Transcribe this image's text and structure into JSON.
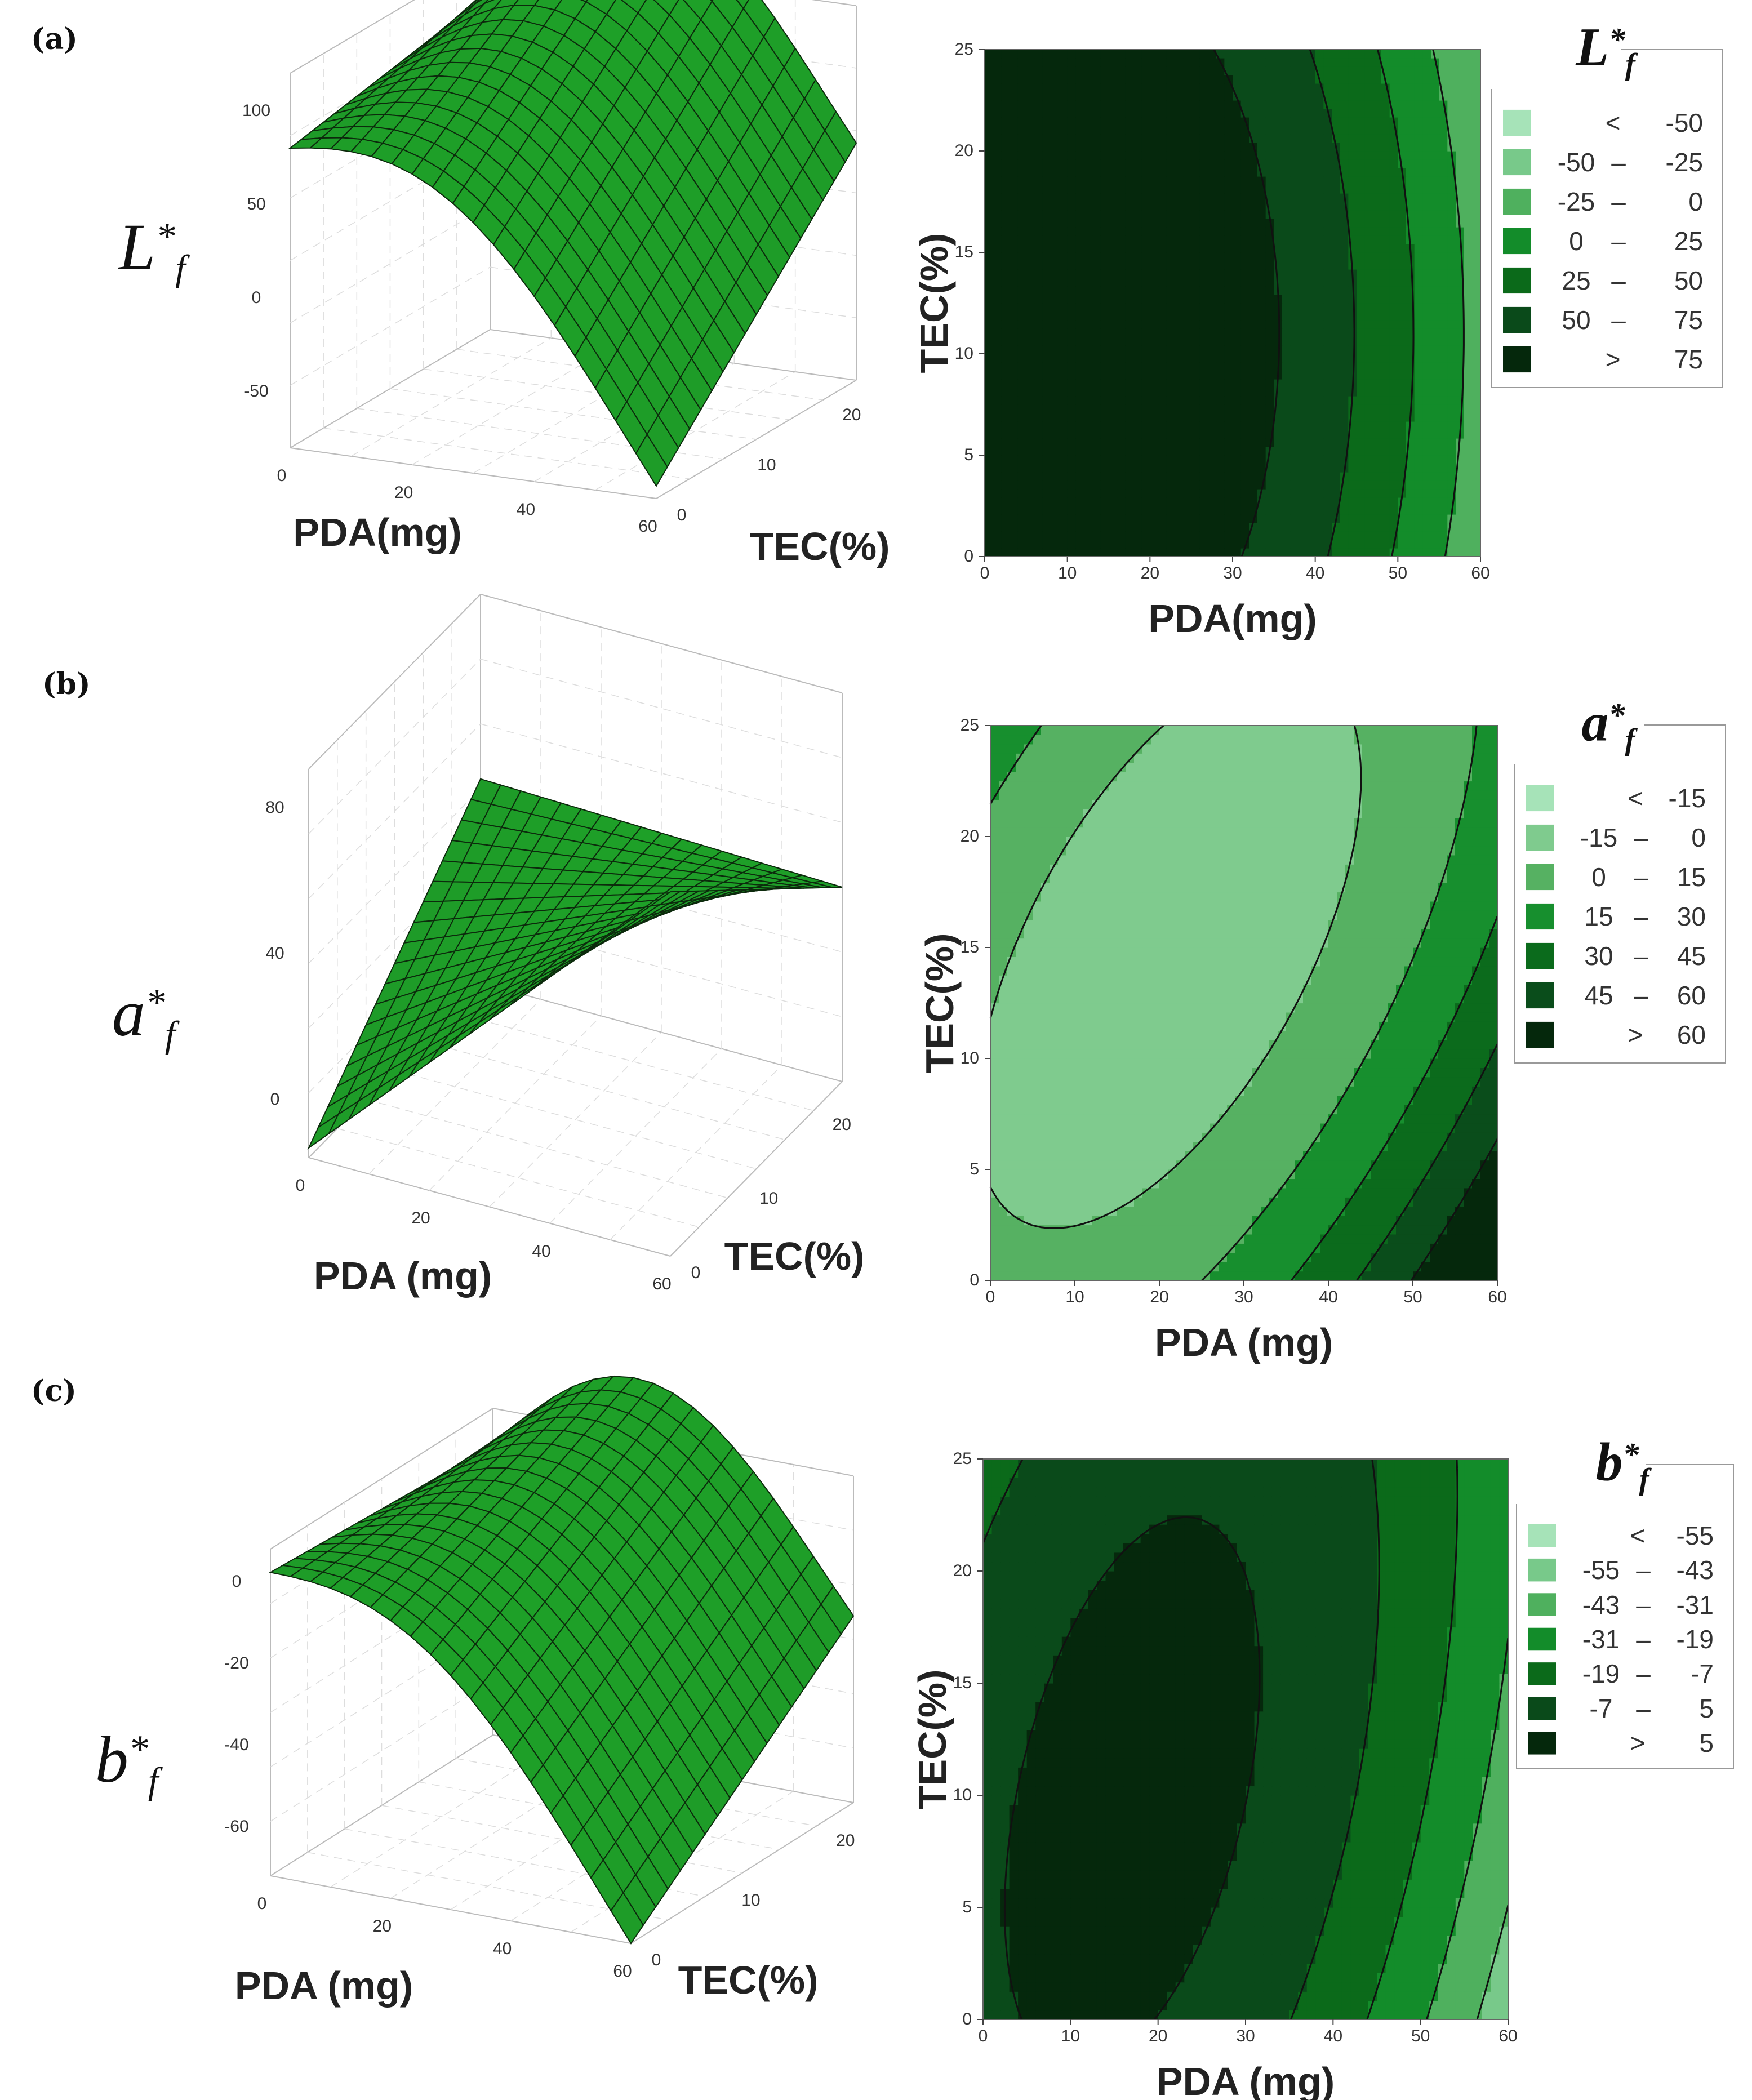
{
  "panels": [
    {
      "label": "(a)"
    },
    {
      "label": "(b)"
    },
    {
      "label": "(c)"
    }
  ],
  "chart_data": [
    {
      "type": "surface",
      "panel": "(a)",
      "title": "L*f",
      "zlabel_base": "L",
      "zlabel_sub": "f",
      "xlabel": "PDA(mg)",
      "ylabel": "TEC(%)",
      "x_ticks": [
        "0",
        "20",
        "40",
        "60"
      ],
      "y_ticks": [
        "0",
        "10",
        "20"
      ],
      "z_ticks": [
        "100",
        "50",
        "0",
        "-50"
      ],
      "xlim": [
        0,
        60
      ],
      "ylim": [
        0,
        25
      ],
      "zlim": [
        -50,
        100
      ],
      "shape": "dome",
      "corners": {
        "x0_y0": 70,
        "x0_y25": 85,
        "x60_y0": -45,
        "x60_y25": 45
      },
      "color": "#2f8f2f"
    },
    {
      "type": "contour",
      "panel": "(a)",
      "title": "L*f",
      "xlabel": "PDA(mg)",
      "ylabel": "TEC(%)",
      "x_ticks": [
        "0",
        "10",
        "20",
        "30",
        "40",
        "50",
        "60"
      ],
      "y_ticks": [
        "0",
        "5",
        "10",
        "15",
        "20",
        "25"
      ],
      "xlim": [
        0,
        60
      ],
      "ylim": [
        0,
        25
      ],
      "levels": [
        -50,
        -25,
        0,
        25,
        50,
        75
      ],
      "legend_title_base": "L",
      "legend_title_sub": "f",
      "legend_rows": [
        {
          "op": "<",
          "a": "",
          "b": "-50",
          "color": "#a6e3b8"
        },
        {
          "op": "",
          "a": "-50",
          "b": "-25",
          "color": "#78c98a"
        },
        {
          "op": "",
          "a": "-25",
          "b": "0",
          "color": "#4fb05e"
        },
        {
          "op": "",
          "a": "0",
          "b": "25",
          "color": "#138c2a"
        },
        {
          "op": "",
          "a": "25",
          "b": "50",
          "color": "#0b6a1a"
        },
        {
          "op": "",
          "a": "50",
          "b": "75",
          "color": "#0a4a1a"
        },
        {
          "op": ">",
          "a": "",
          "b": "75",
          "color": "#05280c"
        }
      ],
      "model": {
        "c": 105,
        "ax": 0,
        "px": -0.0456,
        "xc": 10,
        "ay": 0,
        "py": -0.08,
        "yc": 11
      }
    },
    {
      "type": "surface",
      "panel": "(b)",
      "title": "a*f",
      "zlabel_base": "a",
      "zlabel_sub": "f",
      "xlabel": "PDA (mg)",
      "ylabel": "TEC(%)",
      "x_ticks": [
        "0",
        "20",
        "40",
        "60"
      ],
      "y_ticks": [
        "0",
        "10",
        "20"
      ],
      "z_ticks": [
        "80",
        "40",
        "0"
      ],
      "xlim": [
        0,
        60
      ],
      "ylim": [
        0,
        25
      ],
      "zlim": [
        0,
        80
      ],
      "shape": "saddle",
      "corners": {
        "x0_y0": 2,
        "x0_y25": 42,
        "x60_y0": 75,
        "x60_y25": 40
      },
      "color": "#2f8f2f"
    },
    {
      "type": "contour",
      "panel": "(b)",
      "title": "a*f",
      "xlabel": "PDA (mg)",
      "ylabel": "TEC(%)",
      "x_ticks": [
        "0",
        "10",
        "20",
        "30",
        "40",
        "50",
        "60"
      ],
      "y_ticks": [
        "0",
        "5",
        "10",
        "15",
        "20",
        "25"
      ],
      "xlim": [
        0,
        60
      ],
      "ylim": [
        0,
        25
      ],
      "levels": [
        -15,
        0,
        15,
        30,
        45,
        60
      ],
      "legend_title_base": "a",
      "legend_title_sub": "f",
      "legend_rows": [
        {
          "op": "<",
          "a": "",
          "b": "-15",
          "color": "#a6e3b8"
        },
        {
          "op": "",
          "a": "-15",
          "b": "0",
          "color": "#7fcb8e"
        },
        {
          "op": "",
          "a": "0",
          "b": "15",
          "color": "#56b162"
        },
        {
          "op": "",
          "a": "15",
          "b": "30",
          "color": "#178f2e"
        },
        {
          "op": "",
          "a": "30",
          "b": "45",
          "color": "#0b6b1c"
        },
        {
          "op": "",
          "a": "45",
          "b": "60",
          "color": "#0a4d1b"
        },
        {
          "op": ">",
          "a": "",
          "b": "60",
          "color": "#05280c"
        }
      ],
      "model": {
        "c": -2,
        "ax": 0,
        "px": 0.028,
        "xc": 5,
        "ay": 0,
        "py": 0.09,
        "yc": 8,
        "bx": 0,
        "xy": -0.06
      }
    },
    {
      "type": "surface",
      "panel": "(c)",
      "title": "b*f",
      "zlabel_base": "b",
      "zlabel_sub": "f",
      "xlabel": "PDA (mg)",
      "ylabel": "TEC(%)",
      "x_ticks": [
        "0",
        "20",
        "40",
        "60"
      ],
      "y_ticks": [
        "0",
        "10",
        "20"
      ],
      "z_ticks": [
        "0",
        "-20",
        "-40",
        "-60"
      ],
      "xlim": [
        0,
        60
      ],
      "ylim": [
        0,
        25
      ],
      "zlim": [
        -60,
        10
      ],
      "shape": "dome",
      "corners": {
        "x0_y0": 5,
        "x0_y25": 2,
        "x60_y0": -60,
        "x60_y25": -20
      },
      "color": "#2f8f2f"
    },
    {
      "type": "contour",
      "panel": "(c)",
      "title": "b*f",
      "xlabel": "PDA (mg)",
      "ylabel": "TEC(%)",
      "x_ticks": [
        "0",
        "10",
        "20",
        "30",
        "40",
        "50",
        "60"
      ],
      "y_ticks": [
        "0",
        "5",
        "10",
        "15",
        "20",
        "25"
      ],
      "xlim": [
        0,
        60
      ],
      "ylim": [
        0,
        25
      ],
      "levels": [
        -55,
        -43,
        -31,
        -19,
        -7,
        5
      ],
      "legend_title_base": "b",
      "legend_title_sub": "f",
      "legend_rows": [
        {
          "op": "<",
          "a": "",
          "b": "-55",
          "color": "#a6e3b8"
        },
        {
          "op": "",
          "a": "-55",
          "b": "-43",
          "color": "#78c98a"
        },
        {
          "op": "",
          "a": "-43",
          "b": "-31",
          "color": "#4fb05e"
        },
        {
          "op": "",
          "a": "-31",
          "b": "-19",
          "color": "#138c2a"
        },
        {
          "op": "",
          "a": "-19",
          "b": "-7",
          "color": "#0b6a1a"
        },
        {
          "op": "",
          "a": "-7",
          "b": "5",
          "color": "#0a4a1a"
        },
        {
          "op": ">",
          "a": "",
          "b": "5",
          "color": "#05280c"
        }
      ],
      "model": {
        "c": 7,
        "ax": 0,
        "px": -0.025,
        "xc": 12,
        "ay": 0,
        "py": -0.035,
        "yc": 4,
        "bx": 0,
        "xy": 0.025
      }
    }
  ]
}
